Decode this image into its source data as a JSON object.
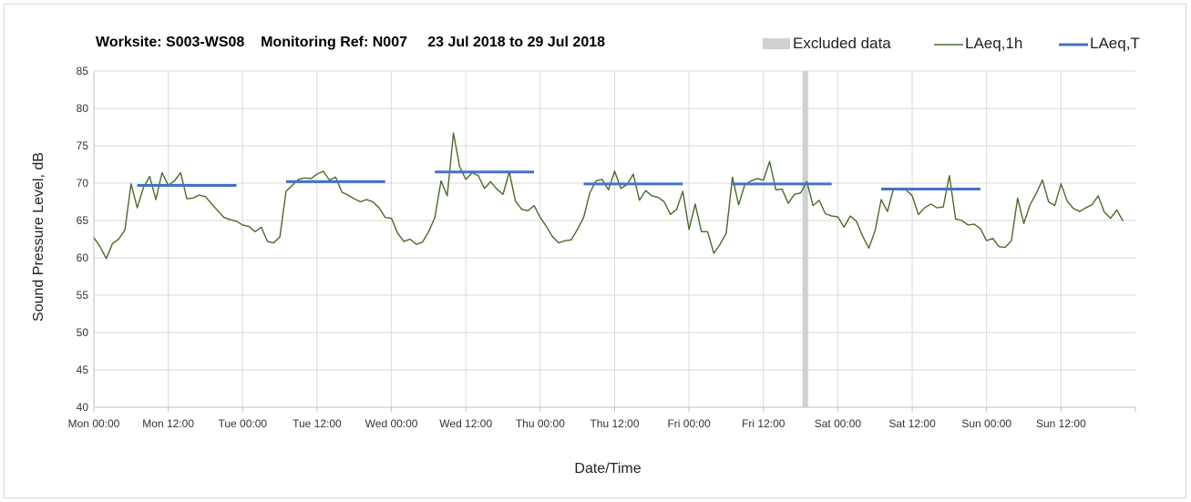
{
  "chart_data": {
    "type": "line",
    "title": "Worksite: S003-WS08    Monitoring Ref: N007     23 Jul 2018 to 29 Jul 2018",
    "xlabel": "Date/Time",
    "ylabel": "Sound Pressure Level, dB",
    "ylim": [
      40,
      85
    ],
    "yticks": [
      40,
      45,
      50,
      55,
      60,
      65,
      70,
      75,
      80,
      85
    ],
    "xlim_hours": [
      0,
      168
    ],
    "xticks": [
      {
        "label": "Mon 00:00",
        "hour": 0
      },
      {
        "label": "Mon 12:00",
        "hour": 12
      },
      {
        "label": "Tue 00:00",
        "hour": 24
      },
      {
        "label": "Tue 12:00",
        "hour": 36
      },
      {
        "label": "Wed 00:00",
        "hour": 48
      },
      {
        "label": "Wed 12:00",
        "hour": 60
      },
      {
        "label": "Thu 00:00",
        "hour": 72
      },
      {
        "label": "Thu 12:00",
        "hour": 84
      },
      {
        "label": "Fri 00:00",
        "hour": 96
      },
      {
        "label": "Fri 12:00",
        "hour": 108
      },
      {
        "label": "Sat 00:00",
        "hour": 120
      },
      {
        "label": "Sat 12:00",
        "hour": 132
      },
      {
        "label": "Sun 00:00",
        "hour": 144
      },
      {
        "label": "Sun 12:00",
        "hour": 156
      }
    ],
    "grid": true,
    "legend_position": "top-right",
    "legend": [
      {
        "name": "Excluded data",
        "color": "#d0d0d0",
        "kind": "band"
      },
      {
        "name": "LAeq,1h",
        "color": "#4a6b2a",
        "kind": "line"
      },
      {
        "name": "LAeq,T",
        "color": "#4472c4",
        "kind": "line"
      }
    ],
    "series": [
      {
        "name": "LAeq,1h",
        "color": "#4a6b2a",
        "x_start_hour": 0,
        "x_step_hours": 1,
        "values": [
          62.7,
          61.5,
          59.9,
          61.9,
          62.5,
          63.7,
          69.9,
          66.7,
          69.4,
          70.9,
          67.8,
          71.4,
          69.7,
          70.3,
          71.4,
          67.9,
          68.0,
          68.4,
          68.2,
          67.2,
          66.3,
          65.4,
          65.1,
          64.9,
          64.4,
          64.2,
          63.5,
          64.1,
          62.2,
          62.0,
          62.8,
          68.9,
          69.7,
          70.5,
          70.7,
          70.6,
          71.2,
          71.6,
          70.4,
          70.8,
          68.8,
          68.4,
          67.9,
          67.5,
          67.8,
          67.5,
          66.7,
          65.4,
          65.3,
          63.3,
          62.2,
          62.5,
          61.8,
          62.1,
          63.5,
          65.4,
          70.3,
          68.3,
          76.7,
          72.2,
          70.5,
          71.4,
          71.0,
          69.3,
          70.2,
          69.2,
          68.5,
          71.5,
          67.6,
          66.5,
          66.3,
          67.0,
          65.4,
          64.2,
          62.8,
          62.0,
          62.3,
          62.4,
          63.8,
          65.4,
          68.7,
          70.3,
          70.5,
          69.1,
          71.6,
          69.3,
          69.8,
          71.2,
          67.7,
          69.0,
          68.3,
          68.1,
          67.5,
          65.8,
          66.5,
          68.9,
          63.8,
          67.2,
          63.5,
          63.5,
          60.6,
          61.8,
          63.3,
          70.8,
          67.1,
          69.8,
          70.3,
          70.6,
          70.4,
          72.9,
          69.1,
          69.2,
          67.3,
          68.5,
          68.7,
          70.2,
          67.0,
          67.7,
          65.9,
          65.6,
          65.5,
          64.1,
          65.6,
          64.9,
          62.9,
          61.3,
          63.6,
          67.8,
          66.2,
          69.3,
          69.1,
          69.1,
          68.3,
          65.8,
          66.7,
          67.2,
          66.7,
          66.8,
          71.0,
          65.2,
          65.0,
          64.4,
          64.5,
          63.9,
          62.3,
          62.6,
          61.5,
          61.4,
          62.3,
          68.0,
          64.6,
          67.1,
          68.6,
          70.4,
          67.5,
          67.0,
          69.9,
          67.6,
          66.6,
          66.2,
          66.7,
          67.1,
          68.3,
          66.1,
          65.3,
          66.4,
          64.9
        ]
      },
      {
        "name": "LAeq,T",
        "color": "#4472c4",
        "segments": [
          {
            "start_hour": 7,
            "end_hour": 23,
            "value": 69.7
          },
          {
            "start_hour": 31,
            "end_hour": 47,
            "value": 70.2
          },
          {
            "start_hour": 55,
            "end_hour": 71,
            "value": 71.5
          },
          {
            "start_hour": 79,
            "end_hour": 95,
            "value": 69.9
          },
          {
            "start_hour": 103,
            "end_hour": 119,
            "value": 69.9
          },
          {
            "start_hour": 127,
            "end_hour": 143,
            "value": 69.2
          }
        ]
      }
    ],
    "excluded": [
      {
        "start_hour": 114.3,
        "end_hour": 115.2
      }
    ]
  }
}
